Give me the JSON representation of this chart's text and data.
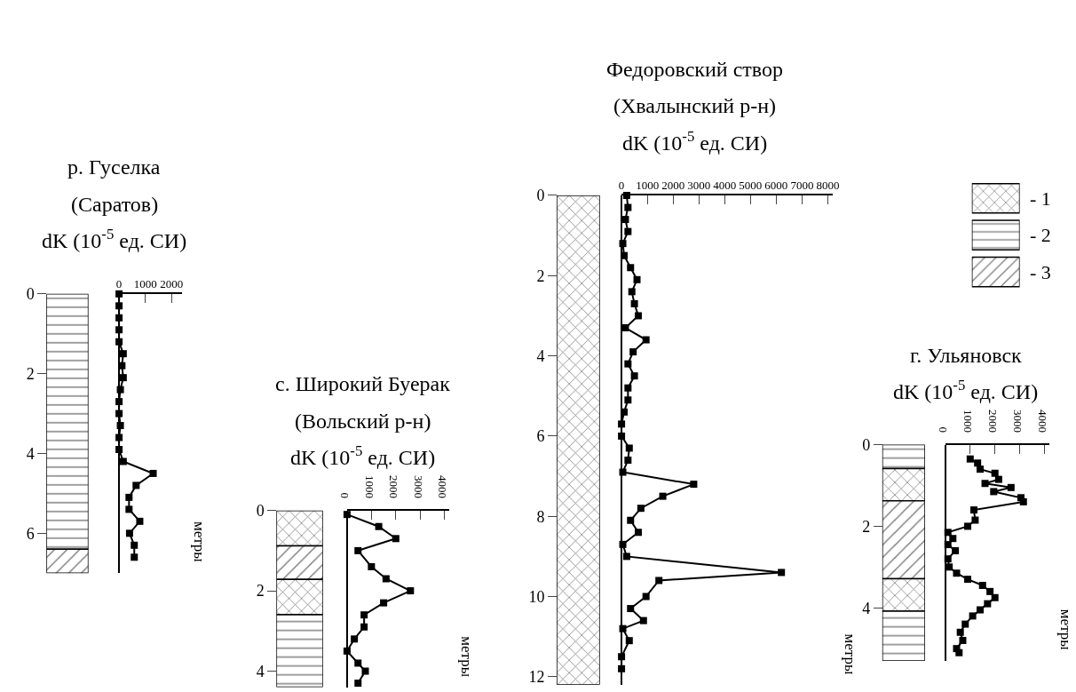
{
  "chart_data": [
    {
      "type": "line",
      "title": "р. Гуселка",
      "subtitle": "(Саратов)",
      "xlabel": "dK (10$^{-5}$ ед. СИ)",
      "ylabel": "метры",
      "orientation": "horizontal",
      "marker": "square",
      "line_style": "solid",
      "grid": false,
      "x": [
        0,
        0.3,
        0.6,
        0.9,
        1.2,
        1.5,
        1.8,
        2.1,
        2.4,
        2.7,
        3.0,
        3.3,
        3.6,
        3.9,
        4.2,
        4.5,
        4.8,
        5.1,
        5.4,
        5.7,
        6.0,
        6.3,
        6.6
      ],
      "series": [
        {
          "color": "#000000",
          "values": [
            0,
            0,
            0,
            0,
            0,
            160,
            110,
            160,
            50,
            0,
            0,
            50,
            0,
            0,
            160,
            1300,
            650,
            380,
            380,
            790,
            400,
            580,
            580
          ]
        }
      ],
      "xlim": [
        0,
        2400
      ],
      "xticks": [
        0,
        1000,
        2000
      ],
      "ylim": [
        7,
        0
      ],
      "yticks": [
        0,
        2,
        4,
        6
      ]
    },
    {
      "type": "line",
      "title": "с. Широкий Буерак",
      "subtitle": "(Вольский р-н)",
      "xlabel": "dK (10$^{-5}$ ед. СИ)",
      "ylabel": "метры",
      "orientation": "horizontal",
      "marker": "square",
      "line_style": "solid",
      "grid": false,
      "x": [
        0.1,
        0.4,
        0.7,
        1.0,
        1.4,
        1.7,
        2.0,
        2.3,
        2.6,
        2.9,
        3.2,
        3.5,
        3.8,
        4.0,
        4.3
      ],
      "series": [
        {
          "color": "#000000",
          "values": [
            0,
            1300,
            2000,
            450,
            1000,
            1600,
            2600,
            1500,
            700,
            700,
            300,
            0,
            450,
            750,
            450
          ]
        }
      ],
      "xlim": [
        0,
        4200
      ],
      "xticks": [
        0,
        1000,
        2000,
        3000,
        4000
      ],
      "ylim": [
        4.4,
        0
      ],
      "yticks": [
        0,
        2,
        4
      ]
    },
    {
      "type": "line",
      "title": "Федоровский створ",
      "subtitle": "(Хвалынский р-н)",
      "xlabel": "dK (10$^{-5}$ ед. СИ)",
      "ylabel": "метры",
      "orientation": "horizontal",
      "marker": "square",
      "line_style": "solid",
      "grid": false,
      "x": [
        0,
        0.3,
        0.6,
        0.9,
        1.2,
        1.5,
        1.8,
        2.1,
        2.4,
        2.7,
        3.0,
        3.3,
        3.6,
        3.9,
        4.2,
        4.5,
        4.8,
        5.1,
        5.4,
        5.7,
        6.0,
        6.3,
        6.6,
        6.9,
        7.2,
        7.5,
        7.8,
        8.1,
        8.4,
        8.7,
        9.0,
        9.4,
        9.6,
        10.0,
        10.3,
        10.6,
        10.8,
        11.1,
        11.5,
        11.8
      ],
      "series": [
        {
          "color": "#000000",
          "values": [
            200,
            250,
            150,
            250,
            50,
            100,
            350,
            600,
            400,
            500,
            650,
            150,
            950,
            450,
            250,
            500,
            250,
            250,
            100,
            0,
            0,
            300,
            250,
            50,
            2800,
            1600,
            750,
            350,
            650,
            50,
            200,
            6200,
            1450,
            950,
            350,
            850,
            50,
            300,
            0,
            0
          ]
        }
      ],
      "xlim": [
        0,
        8200
      ],
      "xticks": [
        0,
        1000,
        2000,
        3000,
        4000,
        5000,
        6000,
        7000,
        8000
      ],
      "ylim": [
        12.2,
        0
      ],
      "yticks": [
        0,
        2,
        4,
        6,
        8,
        10,
        12
      ]
    },
    {
      "type": "line",
      "title": "г. Ульяновск",
      "xlabel": "dK (10$^{-5}$ ед. СИ)",
      "ylabel": "метры",
      "orientation": "horizontal",
      "marker": "square",
      "line_style": "solid",
      "grid": false,
      "x": [
        0.35,
        0.45,
        0.6,
        0.7,
        0.85,
        0.95,
        1.05,
        1.15,
        1.3,
        1.4,
        1.6,
        1.85,
        2.0,
        2.15,
        2.3,
        2.45,
        2.6,
        2.8,
        3.0,
        3.15,
        3.3,
        3.45,
        3.6,
        3.75,
        3.9,
        4.05,
        4.2,
        4.4,
        4.6,
        4.8,
        5.0,
        5.1
      ],
      "series": [
        {
          "color": "#000000",
          "values": [
            1000,
            1300,
            1400,
            2000,
            2150,
            1600,
            2650,
            1950,
            3050,
            3150,
            1150,
            1200,
            900,
            100,
            300,
            100,
            400,
            100,
            150,
            450,
            900,
            1500,
            1800,
            2000,
            1700,
            1400,
            1100,
            800,
            600,
            700,
            450,
            550
          ]
        }
      ],
      "xlim": [
        0,
        4200
      ],
      "xticks": [
        0,
        1000,
        2000,
        3000,
        4000
      ],
      "ylim": [
        5.3,
        0
      ],
      "yticks": [
        0,
        2,
        4
      ],
      "annotations": [
        "- 1",
        "- 2",
        "- 3"
      ]
    }
  ]
}
